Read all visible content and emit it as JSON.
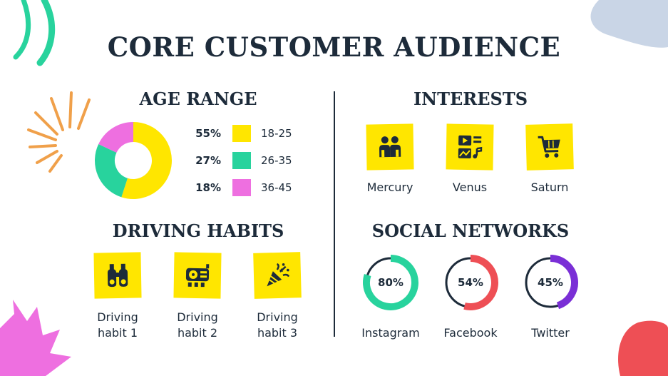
{
  "title": "CORE CUSTOMER AUDIENCE",
  "colors": {
    "navy": "#1d2b3a",
    "yellow": "#ffe600",
    "teal": "#28d39d",
    "pink": "#ee6fe0",
    "orange": "#f0a04a",
    "red": "#ee4f55",
    "purple": "#7a2fd6",
    "light_blue": "#c9d5e6"
  },
  "age_range": {
    "title": "AGE RANGE",
    "items": [
      {
        "percent": "55%",
        "value": 55,
        "label": "18-25",
        "color": "#ffe600"
      },
      {
        "percent": "27%",
        "value": 27,
        "label": "26-35",
        "color": "#28d39d"
      },
      {
        "percent": "18%",
        "value": 18,
        "label": "36-45",
        "color": "#ee6fe0"
      }
    ]
  },
  "interests": {
    "title": "INTERESTS",
    "items": [
      {
        "label": "Mercury",
        "icon": "people-icon"
      },
      {
        "label": "Venus",
        "icon": "media-icon"
      },
      {
        "label": "Saturn",
        "icon": "shopping-cart-icon"
      }
    ]
  },
  "driving_habits": {
    "title": "DRIVING HABITS",
    "items": [
      {
        "label_line1": "Driving",
        "label_line2": "habit 1",
        "icon": "binoculars-icon"
      },
      {
        "label_line1": "Driving",
        "label_line2": "habit 2",
        "icon": "car-dashboard-icon"
      },
      {
        "label_line1": "Driving",
        "label_line2": "habit 3",
        "icon": "party-popper-icon"
      }
    ]
  },
  "social_networks": {
    "title": "SOCIAL NETWORKS",
    "items": [
      {
        "label": "Instagram",
        "percent": "80%",
        "value": 80,
        "color": "#28d39d"
      },
      {
        "label": "Facebook",
        "percent": "54%",
        "value": 54,
        "color": "#ee4f55"
      },
      {
        "label": "Twitter",
        "percent": "45%",
        "value": 45,
        "color": "#7a2fd6"
      }
    ]
  }
}
